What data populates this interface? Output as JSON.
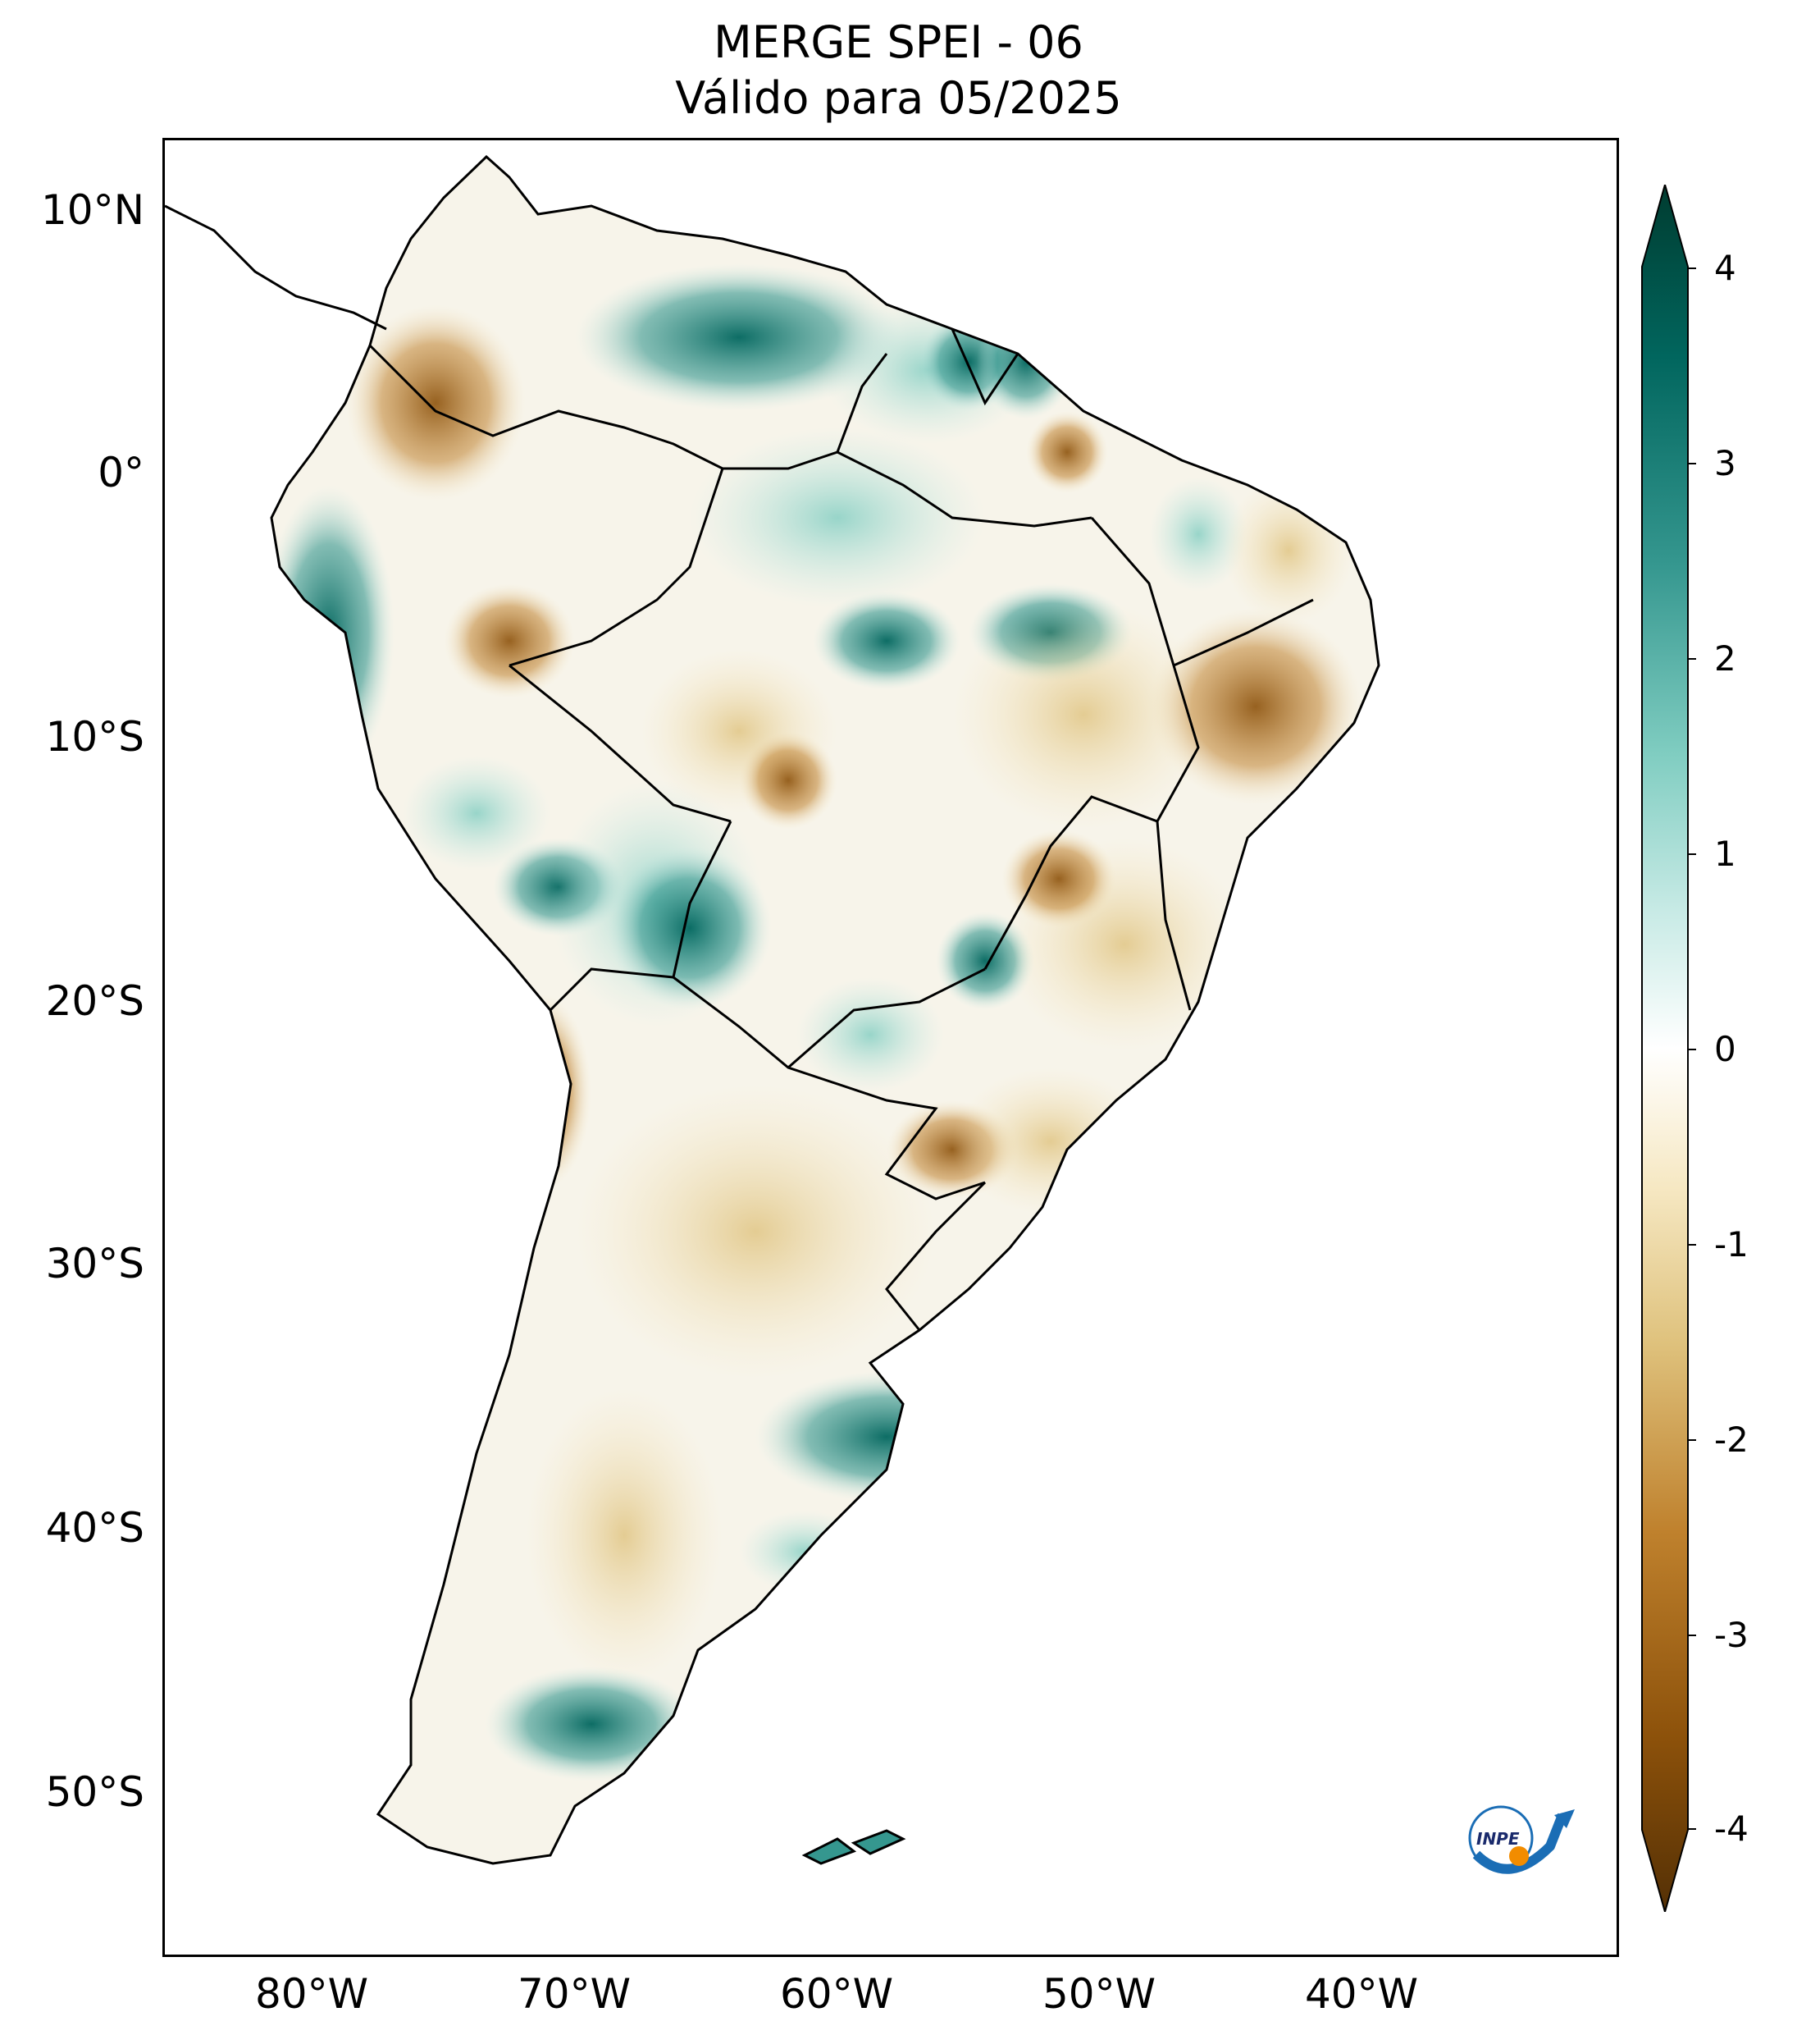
{
  "title": {
    "line1": "MERGE   SPEI - 06",
    "line2": "Válido para 05/2025"
  },
  "axes": {
    "latitude_labels": [
      "10°N",
      "0°",
      "10°S",
      "20°S",
      "30°S",
      "40°S",
      "50°S"
    ],
    "longitude_labels": [
      "80°W",
      "70°W",
      "60°W",
      "50°W",
      "40°W"
    ]
  },
  "colorbar": {
    "tick_labels": [
      "4",
      "3",
      "2",
      "1",
      "0",
      "-1",
      "-2",
      "-3",
      "-4"
    ],
    "min": -4,
    "max": 4,
    "extend": "both",
    "colormap": "BrBG",
    "colors": [
      "#543005",
      "#8c510a",
      "#bf812d",
      "#dfc27d",
      "#f6e8c3",
      "#ffffff",
      "#c7eae5",
      "#80cdc1",
      "#35978f",
      "#01665e",
      "#003c30"
    ]
  },
  "logo": {
    "text": "INPE"
  }
}
